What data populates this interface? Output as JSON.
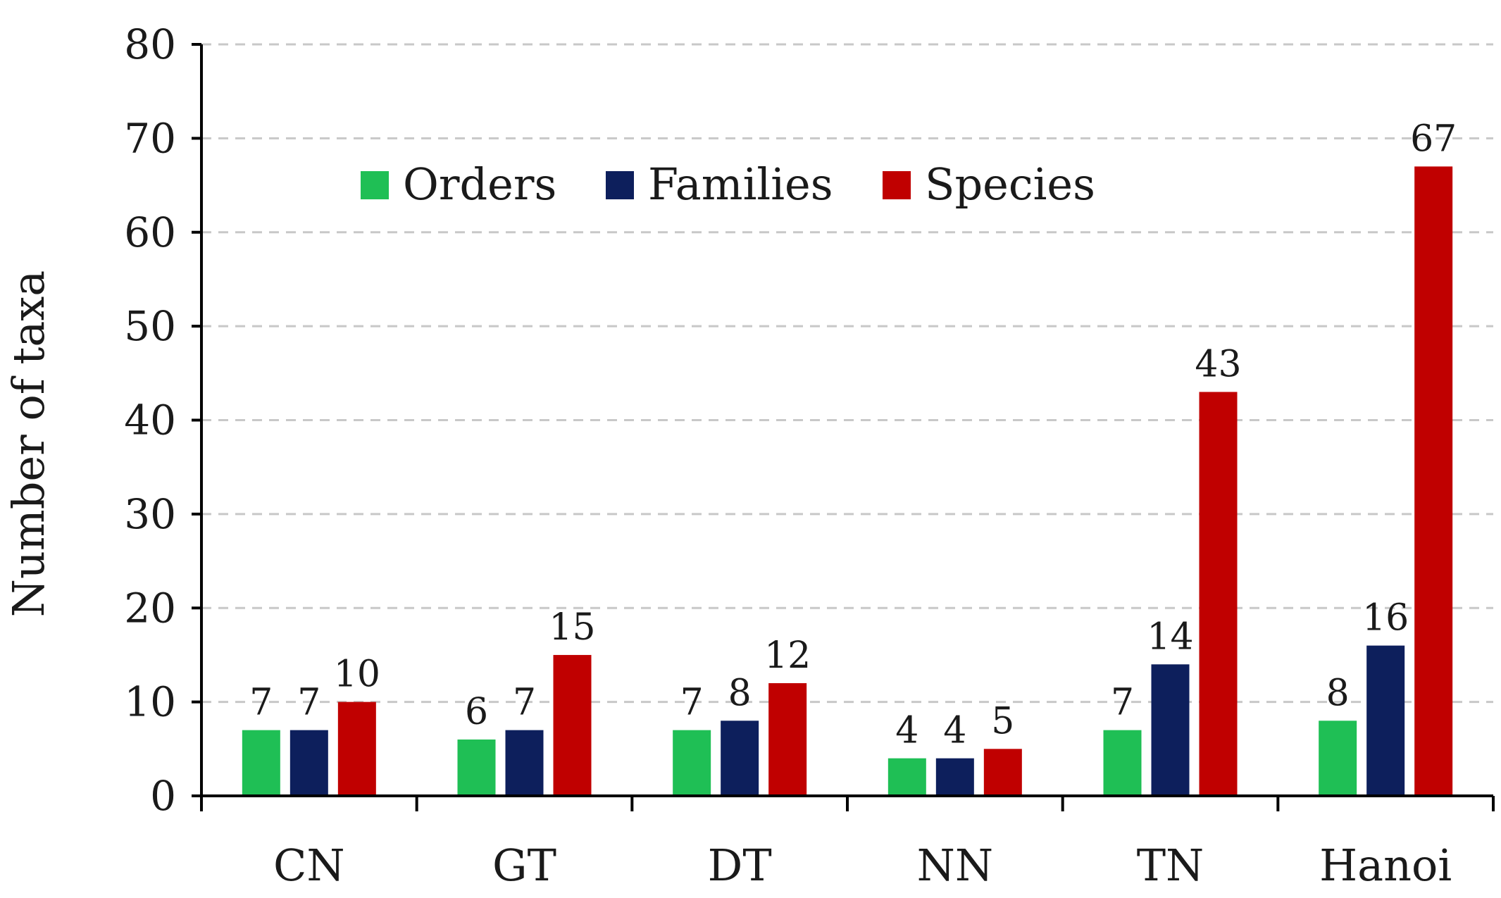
{
  "chart_data": {
    "type": "bar",
    "title": "",
    "xlabel": "",
    "ylabel": "Number of taxa",
    "ylim": [
      0,
      80
    ],
    "yticks": [
      0,
      10,
      20,
      30,
      40,
      50,
      60,
      70,
      80
    ],
    "grid": true,
    "legend_position": "top-center",
    "categories": [
      "CN",
      "GT",
      "DT",
      "NN",
      "TN",
      "Hanoi"
    ],
    "series": [
      {
        "name": "Orders",
        "color": "#1fbf55",
        "values": [
          7,
          6,
          7,
          4,
          7,
          8
        ]
      },
      {
        "name": "Families",
        "color": "#0d1f5c",
        "values": [
          7,
          7,
          8,
          4,
          14,
          16
        ]
      },
      {
        "name": "Species",
        "color": "#c00000",
        "values": [
          10,
          15,
          12,
          5,
          43,
          67
        ]
      }
    ]
  }
}
